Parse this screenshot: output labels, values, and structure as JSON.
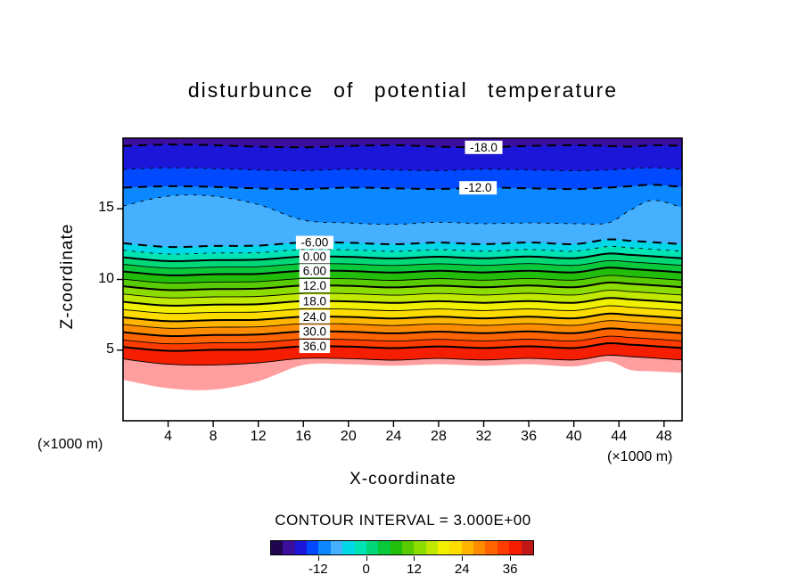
{
  "title": "disturbunce of potential temperature",
  "axes": {
    "x_label": "X-coordinate",
    "y_label": "Z-coordinate",
    "x_unit_left": "(×1000 m)",
    "x_unit_right": "(×1000 m)"
  },
  "footer": {
    "contour_interval": "CONTOUR INTERVAL = 3.000E+00"
  },
  "chart_data": {
    "type": "filled-contour",
    "title": "disturbunce of potential temperature",
    "xlabel": "X-coordinate",
    "ylabel": "Z-coordinate",
    "x_unit": "(×1000 m)",
    "xlim": [
      0,
      49.6
    ],
    "ylim": [
      0,
      20
    ],
    "x_ticks": [
      4,
      8,
      12,
      16,
      20,
      24,
      28,
      32,
      36,
      40,
      44,
      48
    ],
    "y_ticks": [
      5,
      10,
      15
    ],
    "grid": false,
    "contour_interval": 3.0,
    "labeled_values": [
      -18,
      -12,
      -6,
      0,
      6,
      12,
      18,
      24,
      30,
      36
    ],
    "x_samples": [
      0,
      4,
      8,
      12,
      16,
      20,
      24,
      28,
      32,
      36,
      40,
      43,
      45,
      47,
      49.6
    ],
    "contours": [
      {
        "value": -18,
        "z": [
          19.45,
          19.55,
          19.5,
          19.4,
          19.35,
          19.45,
          19.5,
          19.4,
          19.35,
          19.45,
          19.5,
          19.45,
          19.4,
          19.5,
          19.45
        ]
      },
      {
        "value": -15,
        "z": [
          17.8,
          17.9,
          17.85,
          17.75,
          17.7,
          17.8,
          17.75,
          17.7,
          17.8,
          17.75,
          17.7,
          17.75,
          17.85,
          17.9,
          17.8
        ]
      },
      {
        "value": -12,
        "z": [
          16.5,
          16.6,
          16.55,
          16.45,
          16.4,
          16.5,
          16.45,
          16.4,
          16.5,
          16.45,
          16.4,
          16.5,
          16.6,
          16.7,
          16.55
        ]
      },
      {
        "value": -9,
        "z": [
          15.2,
          15.9,
          15.9,
          15.3,
          14.2,
          14.0,
          13.9,
          14.05,
          13.95,
          14.0,
          13.95,
          14.0,
          14.9,
          15.6,
          15.1
        ]
      },
      {
        "value": -6,
        "z": [
          12.57,
          12.3,
          12.37,
          12.4,
          12.62,
          12.6,
          12.49,
          12.61,
          12.5,
          12.62,
          12.5,
          12.83,
          12.74,
          12.64,
          12.5
        ]
      },
      {
        "value": -3,
        "z": [
          12.07,
          11.8,
          11.87,
          11.9,
          12.12,
          12.1,
          11.99,
          12.11,
          12.0,
          12.12,
          12.0,
          12.33,
          12.24,
          12.14,
          12.0
        ]
      },
      {
        "value": 0,
        "z": [
          11.57,
          11.3,
          11.37,
          11.4,
          11.62,
          11.6,
          11.49,
          11.61,
          11.5,
          11.62,
          11.5,
          11.83,
          11.74,
          11.64,
          11.5
        ]
      },
      {
        "value": 3,
        "z": [
          11.07,
          10.8,
          10.87,
          10.9,
          11.12,
          11.1,
          10.99,
          11.11,
          11.0,
          11.12,
          11.0,
          11.33,
          11.24,
          11.14,
          11.0
        ]
      },
      {
        "value": 6,
        "z": [
          10.57,
          10.3,
          10.37,
          10.4,
          10.62,
          10.6,
          10.49,
          10.61,
          10.5,
          10.62,
          10.5,
          10.83,
          10.74,
          10.64,
          10.5
        ]
      },
      {
        "value": 9,
        "z": [
          10.02,
          9.75,
          9.82,
          9.85,
          10.07,
          10.05,
          9.94,
          10.06,
          9.95,
          10.07,
          9.95,
          10.28,
          10.19,
          10.09,
          9.95
        ]
      },
      {
        "value": 12,
        "z": [
          9.52,
          9.25,
          9.32,
          9.35,
          9.57,
          9.55,
          9.44,
          9.56,
          9.45,
          9.57,
          9.45,
          9.78,
          9.69,
          9.59,
          9.45
        ]
      },
      {
        "value": 15,
        "z": [
          8.97,
          8.7,
          8.77,
          8.8,
          9.02,
          9.0,
          8.89,
          9.01,
          8.9,
          9.02,
          8.9,
          9.23,
          9.14,
          9.04,
          8.9
        ]
      },
      {
        "value": 18,
        "z": [
          8.42,
          8.15,
          8.22,
          8.25,
          8.47,
          8.45,
          8.34,
          8.46,
          8.35,
          8.47,
          8.35,
          8.68,
          8.59,
          8.49,
          8.35
        ]
      },
      {
        "value": 21,
        "z": [
          7.87,
          7.6,
          7.67,
          7.7,
          7.92,
          7.9,
          7.79,
          7.91,
          7.8,
          7.92,
          7.8,
          8.13,
          8.04,
          7.94,
          7.8
        ]
      },
      {
        "value": 24,
        "z": [
          7.32,
          7.05,
          7.12,
          7.15,
          7.37,
          7.35,
          7.24,
          7.36,
          7.25,
          7.37,
          7.25,
          7.58,
          7.49,
          7.39,
          7.25
        ]
      },
      {
        "value": 27,
        "z": [
          6.82,
          6.55,
          6.62,
          6.65,
          6.87,
          6.85,
          6.74,
          6.86,
          6.75,
          6.87,
          6.75,
          7.08,
          6.99,
          6.89,
          6.75
        ]
      },
      {
        "value": 30,
        "z": [
          6.27,
          6.0,
          6.07,
          6.1,
          6.32,
          6.3,
          6.19,
          6.31,
          6.2,
          6.32,
          6.2,
          6.53,
          6.44,
          6.34,
          6.2
        ]
      },
      {
        "value": 33,
        "z": [
          5.72,
          5.45,
          5.52,
          5.55,
          5.77,
          5.75,
          5.64,
          5.76,
          5.65,
          5.77,
          5.65,
          5.98,
          5.89,
          5.79,
          5.65
        ]
      },
      {
        "value": 36,
        "z": [
          5.22,
          4.95,
          5.02,
          5.05,
          5.27,
          5.25,
          5.14,
          5.26,
          5.15,
          5.27,
          5.15,
          5.48,
          5.39,
          5.29,
          5.15
        ]
      },
      {
        "value": 39,
        "z": [
          4.37,
          4.0,
          3.95,
          4.1,
          4.42,
          4.4,
          4.29,
          4.41,
          4.3,
          4.42,
          4.3,
          4.63,
          4.54,
          4.44,
          4.3
        ]
      },
      {
        "value": 42,
        "z": [
          2.9,
          2.3,
          2.2,
          2.8,
          3.95,
          4.0,
          3.9,
          4.0,
          3.9,
          4.0,
          3.85,
          4.2,
          3.6,
          3.5,
          3.4
        ]
      }
    ],
    "band_colors": {
      "-21": "#3c0e9e",
      "-18": "#1b16d8",
      "-15": "#0049ff",
      "-12": "#0b87ff",
      "-9": "#45b0fd",
      "-6": "#00d8e8",
      "-3": "#00e4b4",
      "0": "#00d878",
      "3": "#0ac83c",
      "6": "#22bc0a",
      "9": "#58cc00",
      "12": "#8cdc00",
      "15": "#c0e800",
      "18": "#f0f000",
      "21": "#ffdc00",
      "24": "#ffb400",
      "27": "#ff8c00",
      "30": "#ff6400",
      "33": "#ff3c00",
      "36": "#f51e00",
      "39": "#ff9e9e",
      "42": "#ffffff"
    },
    "labels": [
      {
        "text": "-18.0",
        "level": -18,
        "x": 32
      },
      {
        "text": "-12.0",
        "level": -12,
        "x": 31.5
      },
      {
        "text": "-6.00",
        "level": -6,
        "x": 17
      },
      {
        "text": "0.00",
        "level": 0,
        "x": 17
      },
      {
        "text": "6.00",
        "level": 6,
        "x": 17
      },
      {
        "text": "12.0",
        "level": 12,
        "x": 17
      },
      {
        "text": "18.0",
        "level": 18,
        "x": 17
      },
      {
        "text": "24.0",
        "level": 24,
        "x": 17
      },
      {
        "text": "30.0",
        "level": 30,
        "x": 17
      },
      {
        "text": "36.0",
        "level": 36,
        "x": 17
      }
    ],
    "colorbar": {
      "min": -24,
      "max": 42,
      "tick_values": [
        -12,
        0,
        12,
        24,
        36
      ],
      "colors": [
        "#20064e",
        "#3c0e9e",
        "#1b16d8",
        "#0049ff",
        "#0b87ff",
        "#45b0fd",
        "#00d8e8",
        "#00e4b4",
        "#00d878",
        "#0ac83c",
        "#22bc0a",
        "#58cc00",
        "#8cdc00",
        "#c0e800",
        "#f0f000",
        "#ffdc00",
        "#ffb400",
        "#ff8c00",
        "#ff6400",
        "#ff3c00",
        "#f51e00",
        "#c01616"
      ]
    }
  }
}
